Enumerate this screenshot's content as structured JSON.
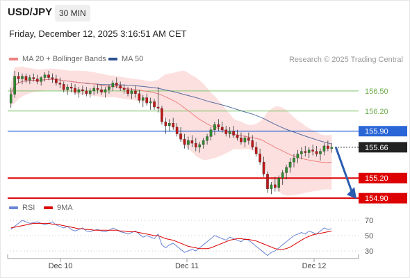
{
  "header": {
    "symbol": "USD/JPY",
    "timeframe": "30 MIN",
    "datetime": "Friday, December 12, 2025 3:16:51 AM CET"
  },
  "legend": {
    "ma20_label": "MA 20 + Bollinger Bands",
    "ma50_label": "MA 50",
    "credit": "Research © 2025 Trading Central",
    "colors": {
      "ma20": "#f08080",
      "ma50": "#2c4f8f",
      "bands": "#fbd5d5"
    }
  },
  "rsi_legend": {
    "rsi_label": "RSI",
    "ma_label": "9MA",
    "colors": {
      "rsi": "#6b86d6",
      "ma": "#dd0000"
    }
  },
  "chart_data": [
    {
      "type": "candlestick",
      "x_ticks": [
        "Dec 10",
        "Dec 11",
        "Dec 12"
      ],
      "ylim": [
        154.85,
        156.82
      ],
      "grid": false,
      "levels": [
        {
          "value": 156.5,
          "label": "156.50",
          "style": "resistance-thin",
          "color": "#7cc466"
        },
        {
          "value": 156.2,
          "label": "156.20",
          "style": "resistance-thin",
          "color": "#7cc466"
        },
        {
          "value": 155.9,
          "label": "155.90",
          "style": "pivot",
          "color": "#2a66d6"
        },
        {
          "value": 155.66,
          "label": "155.66",
          "style": "last-price",
          "color": "#222222"
        },
        {
          "value": 155.2,
          "label": "155.20",
          "style": "support",
          "color": "#dd0000"
        },
        {
          "value": 154.9,
          "label": "154.90",
          "style": "support",
          "color": "#dd0000"
        }
      ],
      "candles": [
        [
          156.32,
          156.55,
          156.25,
          156.45
        ],
        [
          156.45,
          156.8,
          156.4,
          156.72
        ],
        [
          156.72,
          156.78,
          156.62,
          156.68
        ],
        [
          156.68,
          156.76,
          156.6,
          156.72
        ],
        [
          156.72,
          156.76,
          156.62,
          156.66
        ],
        [
          156.66,
          156.74,
          156.6,
          156.7
        ],
        [
          156.7,
          156.76,
          156.64,
          156.68
        ],
        [
          156.68,
          156.74,
          156.6,
          156.64
        ],
        [
          156.64,
          156.72,
          156.58,
          156.7
        ],
        [
          156.7,
          156.78,
          156.64,
          156.74
        ],
        [
          156.74,
          156.8,
          156.66,
          156.7
        ],
        [
          156.7,
          156.76,
          156.62,
          156.68
        ],
        [
          156.68,
          156.74,
          156.58,
          156.62
        ],
        [
          156.62,
          156.7,
          156.54,
          156.6
        ],
        [
          156.6,
          156.64,
          156.48,
          156.52
        ],
        [
          156.52,
          156.6,
          156.44,
          156.56
        ],
        [
          156.56,
          156.62,
          156.48,
          156.54
        ],
        [
          156.54,
          156.6,
          156.44,
          156.48
        ],
        [
          156.48,
          156.56,
          156.4,
          156.52
        ],
        [
          156.52,
          156.58,
          156.44,
          156.5
        ],
        [
          156.5,
          156.56,
          156.42,
          156.46
        ],
        [
          156.46,
          156.54,
          156.4,
          156.5
        ],
        [
          156.5,
          156.58,
          156.44,
          156.54
        ],
        [
          156.54,
          156.6,
          156.46,
          156.52
        ],
        [
          156.52,
          156.58,
          156.44,
          156.48
        ],
        [
          156.48,
          156.56,
          156.4,
          156.52
        ],
        [
          156.52,
          156.6,
          156.46,
          156.56
        ],
        [
          156.56,
          156.66,
          156.5,
          156.62
        ],
        [
          156.62,
          156.7,
          156.54,
          156.58
        ],
        [
          156.58,
          156.64,
          156.5,
          156.54
        ],
        [
          156.54,
          156.6,
          156.46,
          156.52
        ],
        [
          156.52,
          156.56,
          156.42,
          156.46
        ],
        [
          156.46,
          156.54,
          156.38,
          156.5
        ],
        [
          156.5,
          156.58,
          156.4,
          156.46
        ],
        [
          156.46,
          156.52,
          156.32,
          156.36
        ],
        [
          156.36,
          156.44,
          156.26,
          156.4
        ],
        [
          156.4,
          156.46,
          156.28,
          156.32
        ],
        [
          156.32,
          156.4,
          156.22,
          156.34
        ],
        [
          156.34,
          156.38,
          156.22,
          156.26
        ],
        [
          156.26,
          156.56,
          156.18,
          156.24
        ],
        [
          156.24,
          156.28,
          156.0,
          156.04
        ],
        [
          156.04,
          156.1,
          155.86,
          155.98
        ],
        [
          155.98,
          156.08,
          155.9,
          156.02
        ],
        [
          156.02,
          156.1,
          155.92,
          155.96
        ],
        [
          155.96,
          156.02,
          155.82,
          155.86
        ],
        [
          155.86,
          155.96,
          155.74,
          155.78
        ],
        [
          155.78,
          155.86,
          155.64,
          155.7
        ],
        [
          155.7,
          155.82,
          155.62,
          155.76
        ],
        [
          155.76,
          155.84,
          155.66,
          155.72
        ],
        [
          155.72,
          155.8,
          155.6,
          155.66
        ],
        [
          155.66,
          155.74,
          155.58,
          155.7
        ],
        [
          155.7,
          155.8,
          155.64,
          155.76
        ],
        [
          155.76,
          155.86,
          155.7,
          155.82
        ],
        [
          155.82,
          155.96,
          155.76,
          155.92
        ],
        [
          155.92,
          156.04,
          155.84,
          156.0
        ],
        [
          156.0,
          156.08,
          155.9,
          155.96
        ],
        [
          155.96,
          156.04,
          155.88,
          155.92
        ],
        [
          155.92,
          155.98,
          155.82,
          155.86
        ],
        [
          155.86,
          155.96,
          155.8,
          155.9
        ],
        [
          155.9,
          155.98,
          155.8,
          155.84
        ],
        [
          155.84,
          155.92,
          155.76,
          155.8
        ],
        [
          155.8,
          155.88,
          155.7,
          155.74
        ],
        [
          155.74,
          155.84,
          155.66,
          155.8
        ],
        [
          155.8,
          155.88,
          155.7,
          155.76
        ],
        [
          155.76,
          155.84,
          155.62,
          155.66
        ],
        [
          155.66,
          155.74,
          155.52,
          155.56
        ],
        [
          155.56,
          155.64,
          155.4,
          155.44
        ],
        [
          155.44,
          155.52,
          155.22,
          155.26
        ],
        [
          155.26,
          155.3,
          154.98,
          155.04
        ],
        [
          155.04,
          155.14,
          154.96,
          155.1
        ],
        [
          155.1,
          155.22,
          155.0,
          155.06
        ],
        [
          155.06,
          155.24,
          155.0,
          155.2
        ],
        [
          155.2,
          155.32,
          155.1,
          155.28
        ],
        [
          155.28,
          155.4,
          155.18,
          155.36
        ],
        [
          155.36,
          155.5,
          155.28,
          155.44
        ],
        [
          155.44,
          155.56,
          155.36,
          155.5
        ],
        [
          155.5,
          155.62,
          155.42,
          155.56
        ],
        [
          155.56,
          155.66,
          155.48,
          155.6
        ],
        [
          155.6,
          155.68,
          155.52,
          155.58
        ],
        [
          155.58,
          155.66,
          155.5,
          155.62
        ],
        [
          155.62,
          155.7,
          155.54,
          155.6
        ],
        [
          155.6,
          155.68,
          155.52,
          155.56
        ],
        [
          155.56,
          155.64,
          155.46,
          155.6
        ],
        [
          155.6,
          155.72,
          155.54,
          155.68
        ],
        [
          155.68,
          155.76,
          155.6,
          155.64
        ],
        [
          155.64,
          155.72,
          155.58,
          155.66
        ]
      ]
    },
    {
      "type": "line",
      "name": "RSI",
      "ylim": [
        20,
        80
      ],
      "grid_levels": [
        70,
        50,
        30
      ],
      "series": [
        {
          "name": "RSI",
          "values": [
            58,
            62,
            66,
            70,
            68,
            66,
            67,
            68,
            66,
            64,
            66,
            68,
            64,
            62,
            60,
            62,
            58,
            56,
            58,
            60,
            56,
            55,
            57,
            58,
            56,
            55,
            57,
            60,
            58,
            55,
            54,
            52,
            54,
            56,
            52,
            48,
            50,
            48,
            46,
            52,
            38,
            34,
            38,
            40,
            36,
            32,
            28,
            30,
            32,
            30,
            34,
            38,
            42,
            46,
            50,
            48,
            46,
            44,
            48,
            46,
            44,
            42,
            46,
            44,
            40,
            36,
            32,
            28,
            24,
            28,
            30,
            34,
            38,
            42,
            46,
            50,
            52,
            54,
            52,
            56,
            54,
            52,
            56,
            60,
            58,
            59
          ]
        },
        {
          "name": "9MA",
          "values": [
            60,
            61,
            62,
            63,
            64,
            65,
            66,
            66,
            66,
            66,
            66,
            65,
            65,
            64,
            63,
            62,
            61,
            60,
            59,
            59,
            58,
            58,
            57,
            57,
            57,
            57,
            57,
            57,
            57,
            56,
            56,
            55,
            55,
            55,
            54,
            53,
            52,
            51,
            50,
            50,
            48,
            46,
            45,
            44,
            42,
            40,
            38,
            36,
            35,
            34,
            33,
            33,
            33,
            34,
            36,
            38,
            40,
            42,
            44,
            45,
            46,
            46,
            45,
            45,
            44,
            43,
            41,
            39,
            37,
            35,
            33,
            32,
            32,
            33,
            35,
            38,
            41,
            44,
            47,
            49,
            51,
            52,
            53,
            54,
            55,
            56
          ]
        }
      ]
    }
  ]
}
